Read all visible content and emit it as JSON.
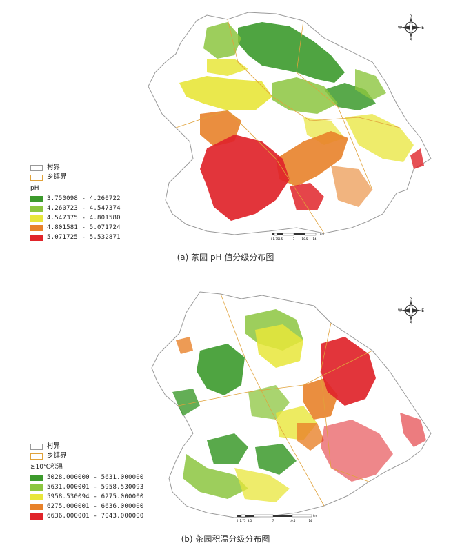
{
  "panel_a": {
    "caption": "(a) 茶园 pH 值分级分布图",
    "legend": {
      "village_label": "村界",
      "town_label": "乡镇界",
      "title": "pH",
      "classes": [
        {
          "range": "3.750098 - 4.260722",
          "color": "#3c9a2c"
        },
        {
          "range": "4.260723 - 4.547374",
          "color": "#8cc63f"
        },
        {
          "range": "4.547375 - 4.801580",
          "color": "#e8e63a"
        },
        {
          "range": "4.801581 - 5.071724",
          "color": "#e8822a"
        },
        {
          "range": "5.071725 - 5.532871",
          "color": "#e0242a"
        }
      ]
    },
    "scale": {
      "ticks": [
        "0",
        "1.75",
        "3.5",
        "7",
        "10.5",
        "14"
      ],
      "unit": "km"
    }
  },
  "panel_b": {
    "caption": "(b) 茶园积温分级分布图",
    "legend": {
      "village_label": "村界",
      "town_label": "乡镇界",
      "title": "≥10℃积温",
      "classes": [
        {
          "range": "5028.000000 - 5631.000000",
          "color": "#3c9a2c"
        },
        {
          "range": "5631.000001 - 5958.530093",
          "color": "#8cc63f"
        },
        {
          "range": "5958.530094 - 6275.000000",
          "color": "#e8e63a"
        },
        {
          "range": "6275.000001 - 6636.000000",
          "color": "#e8822a"
        },
        {
          "range": "6636.000001 - 7043.000000",
          "color": "#e0242a"
        }
      ]
    },
    "scale": {
      "ticks": [
        "0",
        "1.75",
        "3.5",
        "7",
        "10.5",
        "14"
      ],
      "unit": "km"
    }
  },
  "compass": {
    "n": "N",
    "s": "S",
    "e": "E",
    "w": "W"
  }
}
